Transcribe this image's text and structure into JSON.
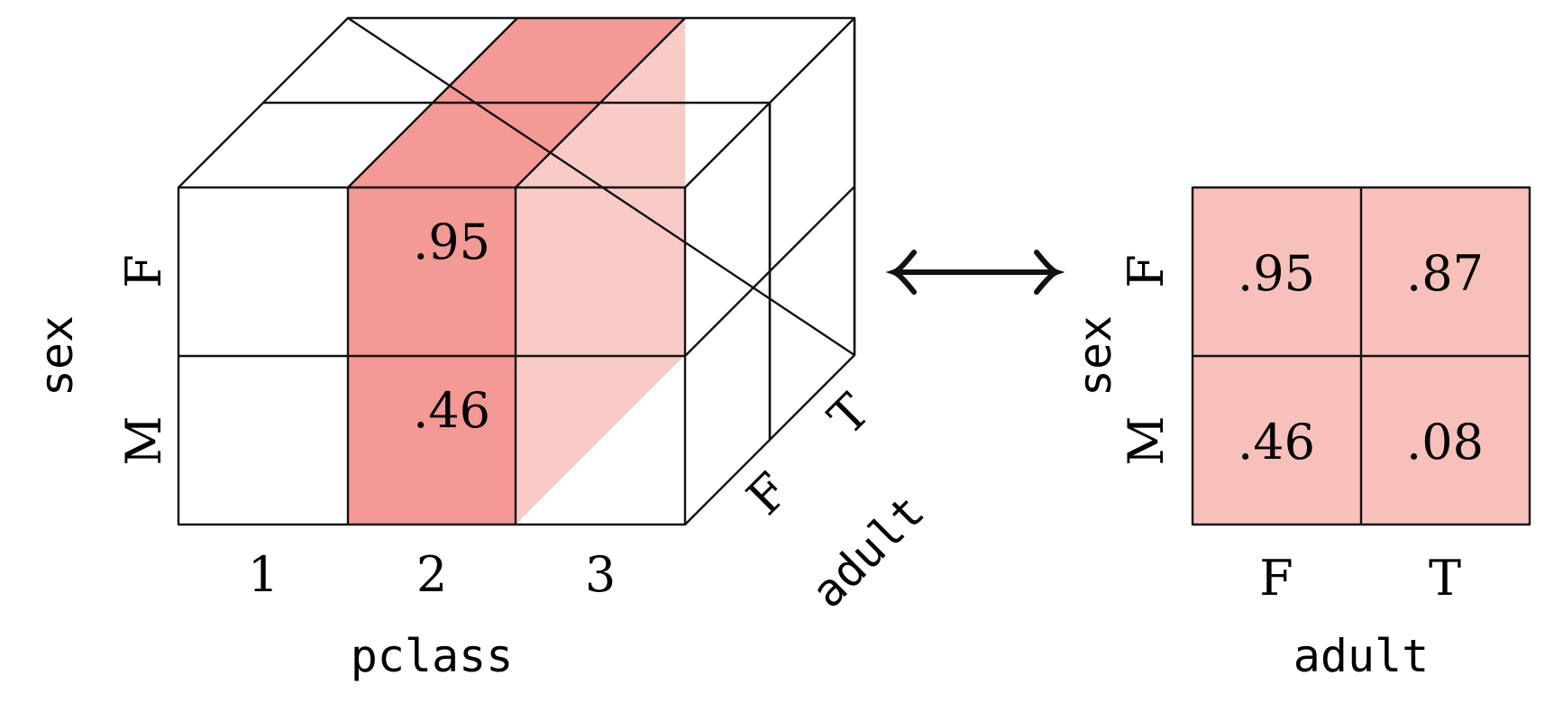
{
  "colors": {
    "slice": "#f49994",
    "slice_light": "#f9cbc7",
    "matrix_fill": "#f7c0bb",
    "line": "#111111"
  },
  "cube": {
    "axis_x_label": "pclass",
    "axis_y_label": "sex",
    "axis_z_label": "adult",
    "x_ticks": [
      "1",
      "2",
      "3"
    ],
    "y_ticks": [
      "F",
      "M"
    ],
    "z_ticks": [
      "F",
      "T"
    ],
    "highlighted_pclass": "2",
    "front_values": [
      ".95",
      ".46"
    ]
  },
  "matrix": {
    "row_axis_label": "sex",
    "col_axis_label": "adult",
    "row_ticks": [
      "F",
      "M"
    ],
    "col_ticks": [
      "F",
      "T"
    ],
    "cells": [
      [
        ".95",
        ".87"
      ],
      [
        ".46",
        ".08"
      ]
    ]
  },
  "arrow": {
    "icon": "double-headed-arrow-icon"
  }
}
